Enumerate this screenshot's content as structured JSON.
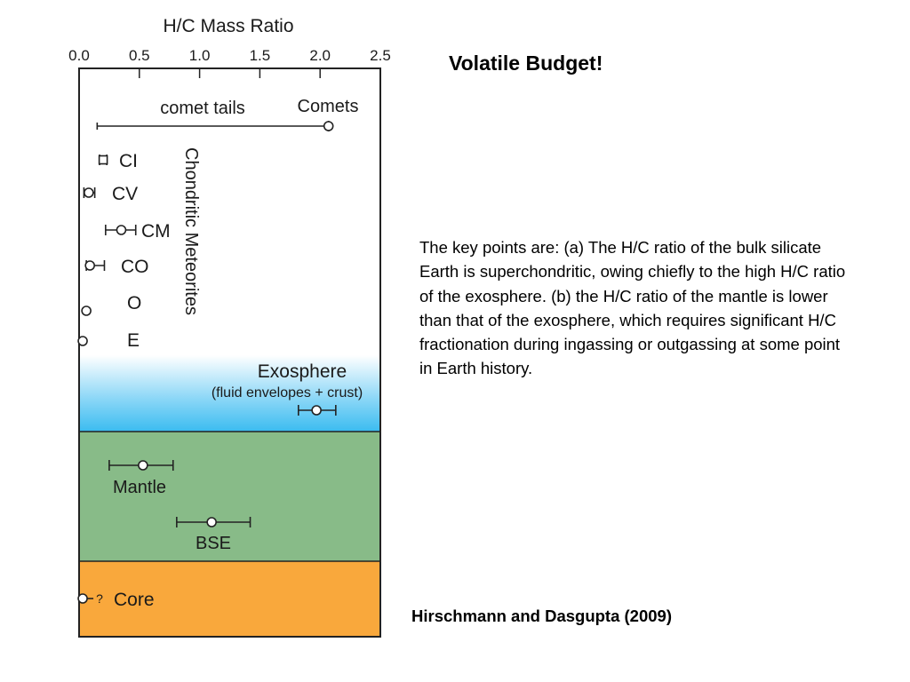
{
  "slide": {
    "title": "Volatile Budget!",
    "body": "The key points are: (a) The H/C ratio of the bulk silicate Earth is superchondritic, owing chiefly to the high H/C ratio of the exosphere. (b) the H/C ratio of the mantle is lower than that of the exosphere, which requires significant H/C fractionation during ingassing or outgassing at some point in Earth history.",
    "citation": "Hirschmann and Dasgupta (2009)"
  },
  "chart_data": {
    "type": "scatter",
    "title": "H/C Mass Ratio",
    "xlabel": "",
    "ylabel": "",
    "xlim": [
      0.0,
      2.5
    ],
    "x_ticks": [
      "0.0",
      "0.5",
      "1.0",
      "1.5",
      "2.0",
      "2.5"
    ],
    "x_tick_values": [
      0.0,
      0.5,
      1.0,
      1.5,
      2.0,
      2.5
    ],
    "group_label": "Chondritic Meteorites",
    "region_labels": [
      "Exosphere",
      "(fluid envelopes + crust)"
    ],
    "annotations": [
      "comet tails"
    ],
    "colors": {
      "exosphere": "#4dc3f0",
      "mantle_bse": "#88bb88",
      "core": "#f9a83c"
    },
    "points": [
      {
        "label": "Comets",
        "x": 2.07,
        "xmin": 0.15,
        "xmax": 2.07,
        "region": "chondritic"
      },
      {
        "label": "CI",
        "x": 0.2,
        "xmin": 0.17,
        "xmax": 0.23,
        "region": "chondritic"
      },
      {
        "label": "CV",
        "x": 0.08,
        "xmin": 0.04,
        "xmax": 0.13,
        "region": "chondritic"
      },
      {
        "label": "CM",
        "x": 0.35,
        "xmin": 0.22,
        "xmax": 0.47,
        "region": "chondritic"
      },
      {
        "label": "CO",
        "x": 0.09,
        "xmin": 0.06,
        "xmax": 0.21,
        "region": "chondritic"
      },
      {
        "label": "O",
        "x": 0.06,
        "region": "chondritic"
      },
      {
        "label": "E",
        "x": 0.03,
        "region": "chondritic"
      },
      {
        "label": "",
        "x": 1.97,
        "xmin": 1.82,
        "xmax": 2.13,
        "region": "exosphere"
      },
      {
        "label": "Mantle",
        "x": 0.53,
        "xmin": 0.25,
        "xmax": 0.78,
        "region": "mantle"
      },
      {
        "label": "BSE",
        "x": 1.1,
        "xmin": 0.81,
        "xmax": 1.42,
        "region": "mantle"
      },
      {
        "label": "Core",
        "x": 0.03,
        "marker": "?",
        "region": "core"
      }
    ]
  }
}
